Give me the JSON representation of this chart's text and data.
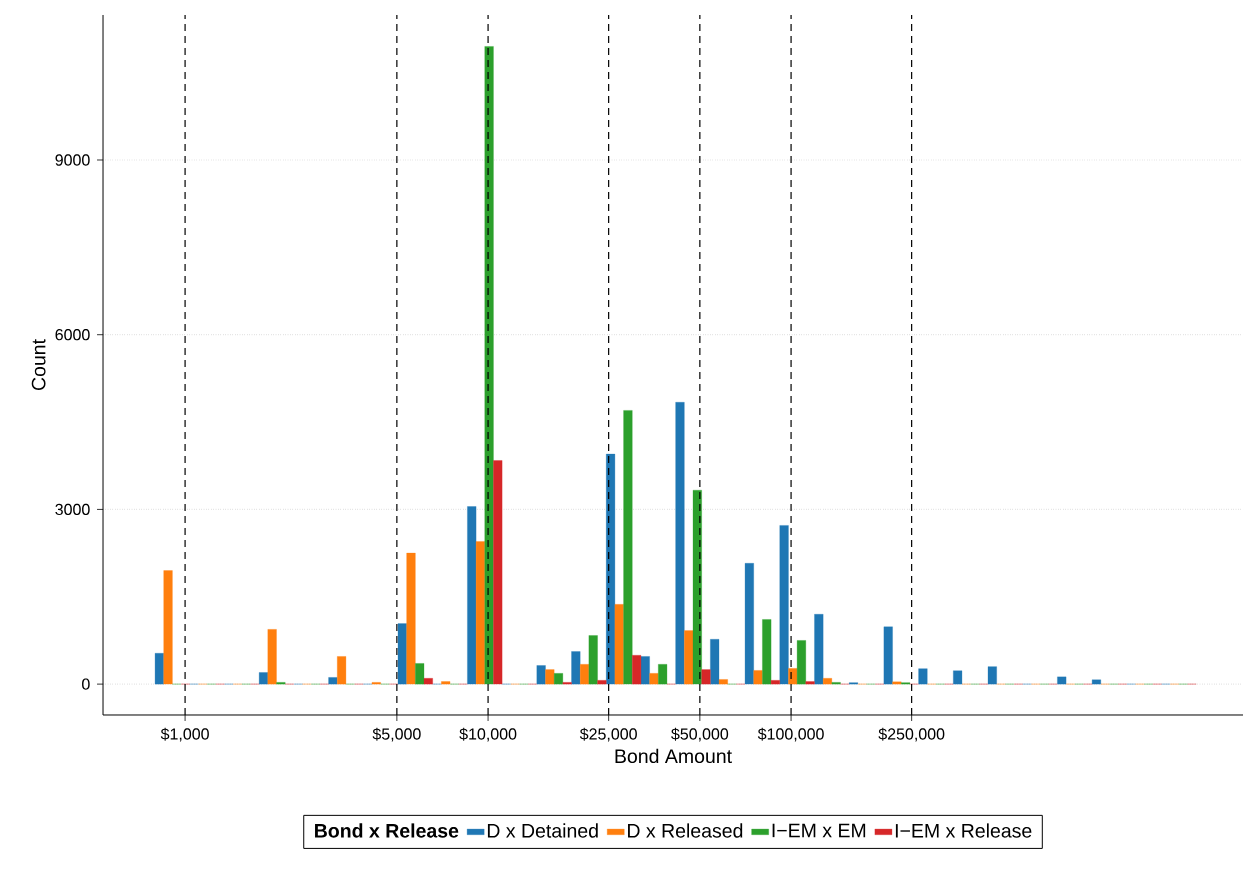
{
  "chart_data": {
    "type": "histogram",
    "xlabel": "Bond Amount",
    "ylabel": "Count",
    "legend_title": "Bond x Release",
    "legend": "bottom",
    "grid": "y",
    "log": "x",
    "xlim": [
      536,
      3102000
    ],
    "ylim": [
      -530,
      11490
    ],
    "xticks": [
      {
        "value": 1000,
        "label": "$1,000"
      },
      {
        "value": 5000,
        "label": "$5,000"
      },
      {
        "value": 10000,
        "label": "$10,000"
      },
      {
        "value": 25000,
        "label": "$25,000"
      },
      {
        "value": 50000,
        "label": "$50,000"
      },
      {
        "value": 100000,
        "label": "$100,000"
      },
      {
        "value": 250000,
        "label": "$250,000"
      }
    ],
    "yticks": [
      0,
      3000,
      6000,
      9000
    ],
    "bins": [
      796,
      1036,
      1349,
      1756,
      2286,
      2976,
      3874,
      5043,
      6565,
      8547,
      11126,
      14484,
      18855,
      24546,
      31954,
      41597,
      54151,
      70494,
      91769,
      119465,
      155520,
      202455,
      263556,
      343097,
      446644,
      581441,
      756920,
      985358,
      1282739,
      1669869,
      2173856
    ],
    "series": [
      {
        "name": "D x Detained",
        "color": "#1f77b4",
        "values": [
          530,
          0,
          0,
          200,
          0,
          115,
          0,
          1040,
          0,
          3050,
          0,
          320,
          560,
          3950,
          475,
          4840,
          770,
          2075,
          2725,
          1200,
          25,
          985,
          265,
          230,
          300,
          0,
          125,
          75,
          0,
          0
        ]
      },
      {
        "name": "D x Released",
        "color": "#ff7f0e",
        "values": [
          1950,
          0,
          0,
          940,
          0,
          475,
          30,
          2250,
          45,
          2450,
          0,
          250,
          340,
          1370,
          185,
          920,
          80,
          235,
          270,
          100,
          0,
          40,
          0,
          0,
          0,
          0,
          0,
          0,
          0,
          0
        ]
      },
      {
        "name": "I−EM x EM",
        "color": "#2ca02c",
        "values": [
          0,
          0,
          0,
          30,
          0,
          0,
          0,
          355,
          0,
          10950,
          0,
          185,
          835,
          4700,
          340,
          3330,
          0,
          1110,
          750,
          30,
          0,
          25,
          0,
          0,
          0,
          0,
          0,
          0,
          0,
          0
        ]
      },
      {
        "name": "I−EM x Release",
        "color": "#d62728",
        "values": [
          0,
          0,
          0,
          0,
          0,
          0,
          0,
          100,
          0,
          3840,
          0,
          30,
          65,
          495,
          0,
          250,
          0,
          65,
          45,
          0,
          0,
          0,
          0,
          0,
          0,
          0,
          0,
          0,
          0,
          0
        ]
      }
    ],
    "ref_lines": [
      {
        "axis": "x",
        "value": 1000,
        "color": "#000000",
        "line_style": "dashed"
      },
      {
        "axis": "x",
        "value": 5000,
        "color": "#000000",
        "line_style": "dashed"
      },
      {
        "axis": "x",
        "value": 10000,
        "color": "#000000",
        "line_style": "dashed"
      },
      {
        "axis": "x",
        "value": 25000,
        "color": "#000000",
        "line_style": "dashed"
      },
      {
        "axis": "x",
        "value": 50000,
        "color": "#000000",
        "line_style": "dashed"
      },
      {
        "axis": "x",
        "value": 100000,
        "color": "#000000",
        "line_style": "dashed"
      },
      {
        "axis": "x",
        "value": 250000,
        "color": "#000000",
        "line_style": "dashed"
      }
    ]
  }
}
